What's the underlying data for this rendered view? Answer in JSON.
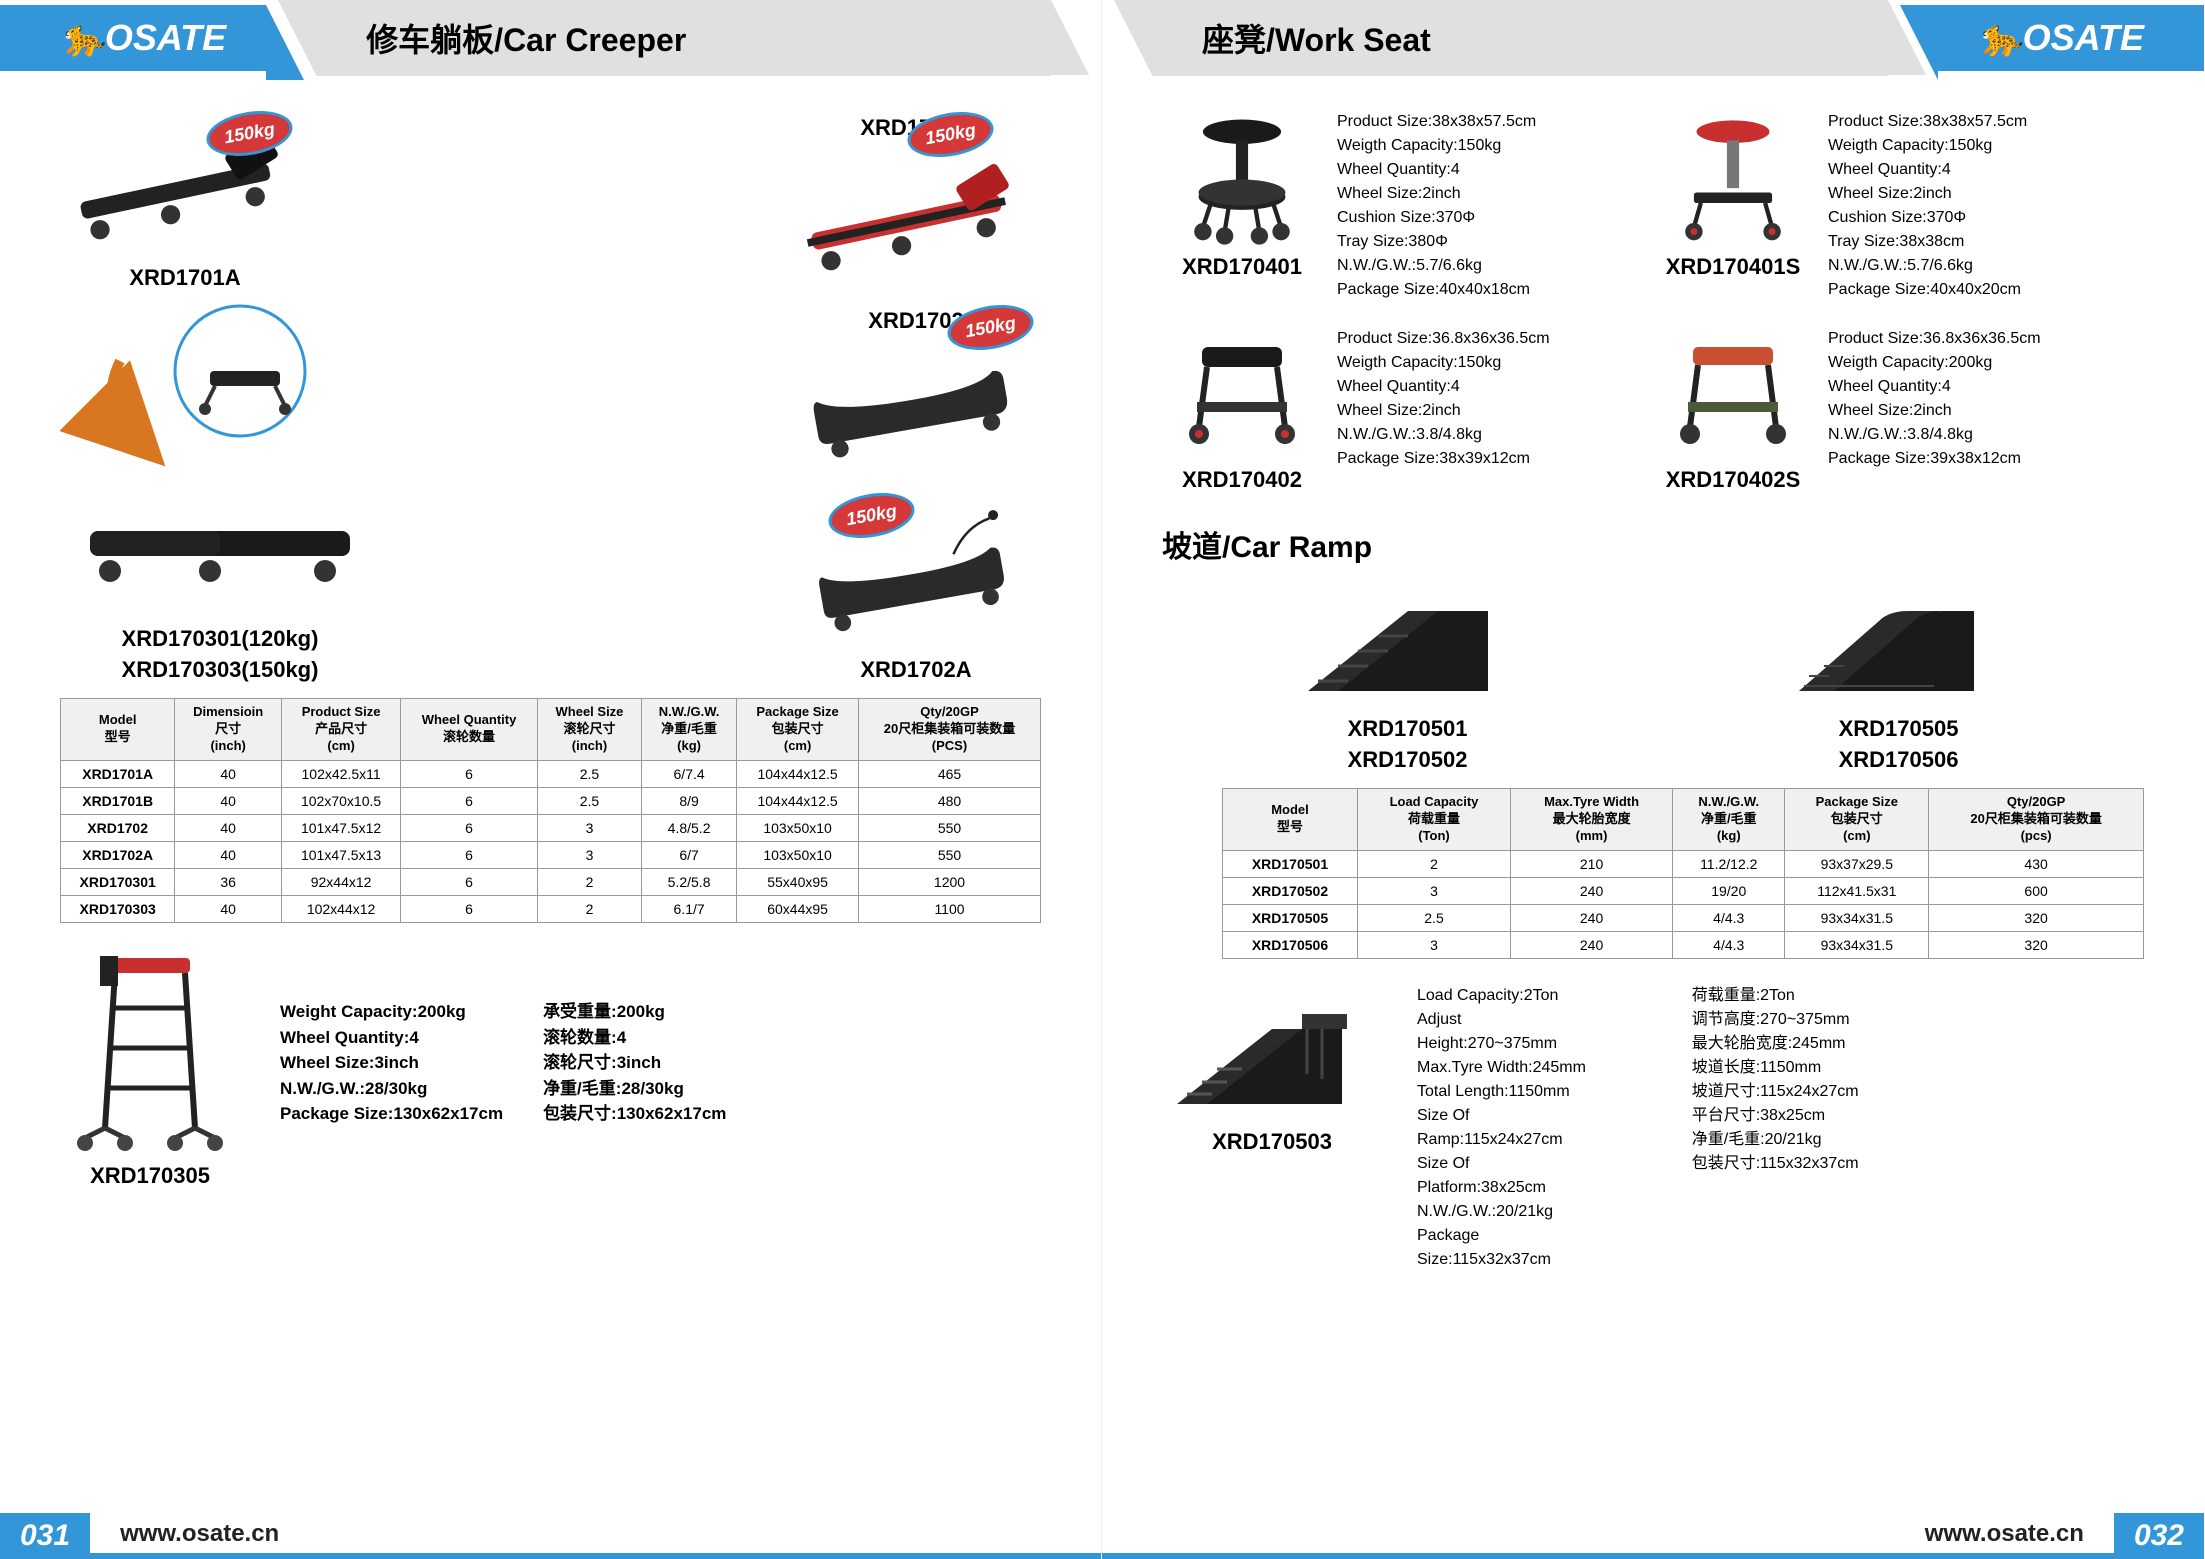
{
  "brand": "OSATE",
  "url": "www.osate.cn",
  "page_left_num": "031",
  "page_right_num": "032",
  "left": {
    "title": "修车躺板/Car Creeper",
    "badge": "150kg",
    "p1": "XRD1701A",
    "p2": "XRD1701B",
    "p3": "XRD1702",
    "p4": "XRD1702A",
    "p5a": "XRD170301(120kg)",
    "p5b": "XRD170303(150kg)",
    "p6": "XRD170305",
    "table_headers": [
      "Model\n型号",
      "Dimensioin\n尺寸\n(inch)",
      "Product Size\n产品尺寸\n(cm)",
      "Wheel Quantity\n滚轮数量",
      "Wheel Size\n滚轮尺寸\n(inch)",
      "N.W./G.W.\n净重/毛重\n(kg)",
      "Package Size\n包装尺寸\n(cm)",
      "Qty/20GP\n20尺柜集装箱可装数量\n(PCS)"
    ],
    "table_rows": [
      [
        "XRD1701A",
        "40",
        "102x42.5x11",
        "6",
        "2.5",
        "6/7.4",
        "104x44x12.5",
        "465"
      ],
      [
        "XRD1701B",
        "40",
        "102x70x10.5",
        "6",
        "2.5",
        "8/9",
        "104x44x12.5",
        "480"
      ],
      [
        "XRD1702",
        "40",
        "101x47.5x12",
        "6",
        "3",
        "4.8/5.2",
        "103x50x10",
        "550"
      ],
      [
        "XRD1702A",
        "40",
        "101x47.5x13",
        "6",
        "3",
        "6/7",
        "103x50x10",
        "550"
      ],
      [
        "XRD170301",
        "36",
        "92x44x12",
        "6",
        "2",
        "5.2/5.8",
        "55x40x95",
        "1200"
      ],
      [
        "XRD170303",
        "40",
        "102x44x12",
        "6",
        "2",
        "6.1/7",
        "60x44x95",
        "1100"
      ]
    ],
    "specs305_en": [
      "Weight Capacity:200kg",
      "Wheel Quantity:4",
      "Wheel Size:3inch",
      "N.W./G.W.:28/30kg",
      "Package Size:130x62x17cm"
    ],
    "specs305_cn": [
      "承受重量:200kg",
      "滚轮数量:4",
      "滚轮尺寸:3inch",
      "净重/毛重:28/30kg",
      "包装尺寸:130x62x17cm"
    ]
  },
  "right": {
    "title1": "座凳/Work Seat",
    "title2": "坡道/Car Ramp",
    "seat1": {
      "model": "XRD170401",
      "specs": [
        "Product Size:38x38x57.5cm",
        "Weigth Capacity:150kg",
        "Wheel Quantity:4",
        "Wheel Size:2inch",
        "Cushion Size:370Φ",
        "Tray Size:380Φ",
        "N.W./G.W.:5.7/6.6kg",
        "Package Size:40x40x18cm"
      ]
    },
    "seat2": {
      "model": "XRD170401S",
      "specs": [
        "Product Size:38x38x57.5cm",
        "Weigth Capacity:150kg",
        "Wheel Quantity:4",
        "Wheel Size:2inch",
        "Cushion Size:370Φ",
        "Tray Size:38x38cm",
        "N.W./G.W.:5.7/6.6kg",
        "Package Size:40x40x20cm"
      ]
    },
    "seat3": {
      "model": "XRD170402",
      "specs": [
        "Product Size:36.8x36x36.5cm",
        "Weigth Capacity:150kg",
        "Wheel Quantity:4",
        "Wheel Size:2inch",
        "N.W./G.W.:3.8/4.8kg",
        "Package Size:38x39x12cm"
      ]
    },
    "seat4": {
      "model": "XRD170402S",
      "specs": [
        "Product Size:36.8x36x36.5cm",
        "Weigth Capacity:200kg",
        "Wheel Quantity:4",
        "Wheel Size:2inch",
        "N.W./G.W.:3.8/4.8kg",
        "Package Size:39x38x12cm"
      ]
    },
    "ramp1a": "XRD170501",
    "ramp1b": "XRD170502",
    "ramp2a": "XRD170505",
    "ramp2b": "XRD170506",
    "ramp_headers": [
      "Model\n型号",
      "Load Capacity\n荷载重量\n(Ton)",
      "Max.Tyre Width\n最大轮胎宽度\n(mm)",
      "N.W./G.W.\n净重/毛重\n(kg)",
      "Package Size\n包装尺寸\n(cm)",
      "Qty/20GP\n20尺柜集装箱可装数量\n(pcs)"
    ],
    "ramp_rows": [
      [
        "XRD170501",
        "2",
        "210",
        "11.2/12.2",
        "93x37x29.5",
        "430"
      ],
      [
        "XRD170502",
        "3",
        "240",
        "19/20",
        "112x41.5x31",
        "600"
      ],
      [
        "XRD170505",
        "2.5",
        "240",
        "4/4.3",
        "93x34x31.5",
        "320"
      ],
      [
        "XRD170506",
        "3",
        "240",
        "4/4.3",
        "93x34x31.5",
        "320"
      ]
    ],
    "ramp503": {
      "model": "XRD170503",
      "en": [
        "Load Capacity:2Ton",
        "Adjust Height:270~375mm",
        "Max.Tyre Width:245mm",
        "Total Length:1150mm",
        "Size Of Ramp:115x24x27cm",
        "Size Of Platform:38x25cm",
        "N.W./G.W.:20/21kg",
        "Package Size:115x32x37cm"
      ],
      "cn": [
        "荷载重量:2Ton",
        "调节高度:270~375mm",
        "最大轮胎宽度:245mm",
        "坡道长度:1150mm",
        "坡道尺寸:115x24x27cm",
        "平台尺寸:38x25cm",
        "净重/毛重:20/21kg",
        "包装尺寸:115x32x37cm"
      ]
    }
  }
}
